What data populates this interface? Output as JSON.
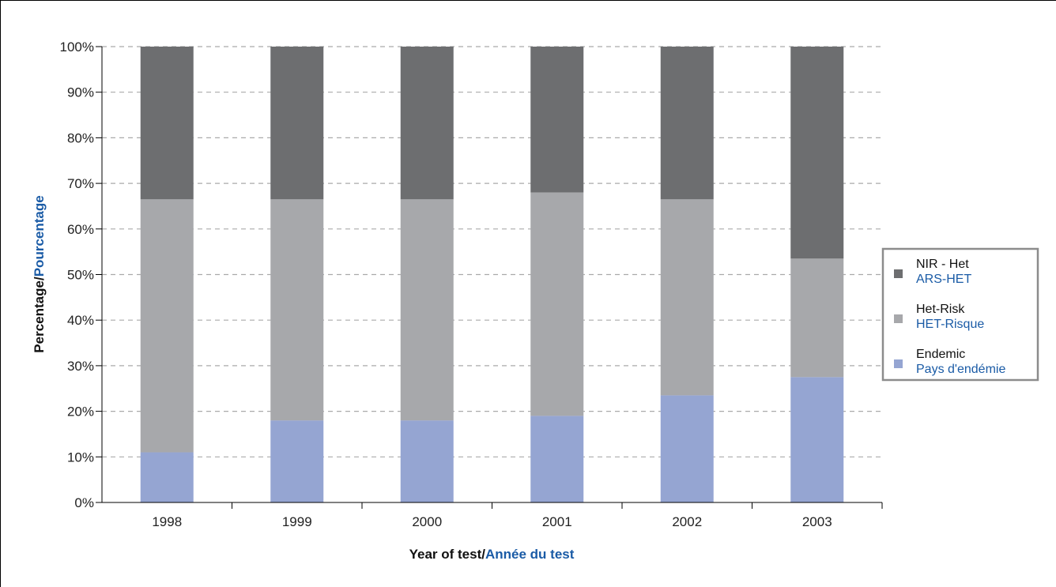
{
  "chart_data": {
    "type": "bar",
    "stacked": true,
    "categories": [
      "1998",
      "1999",
      "2000",
      "2001",
      "2002",
      "2003"
    ],
    "series": [
      {
        "name": "Endemic",
        "name_fr": "Pays d'endémie",
        "color": "#95a5d2",
        "values": [
          11,
          18,
          18,
          19,
          23.5,
          27.5
        ]
      },
      {
        "name": "Het-Risk",
        "name_fr": "HET-Risque",
        "color": "#a7a8ab",
        "values": [
          55.5,
          48.5,
          48.5,
          49,
          43,
          26
        ]
      },
      {
        "name": "NIR - Het",
        "name_fr": "ARS-HET",
        "color": "#6d6e70",
        "values": [
          33.5,
          33.5,
          33.5,
          32,
          33.5,
          46.5
        ]
      }
    ],
    "xlabel": {
      "en": "Year of test",
      "sep": "/",
      "fr": "Année du test"
    },
    "ylabel": {
      "en": "Percentage",
      "sep": "/",
      "fr": "Pourcentage"
    },
    "ylim": [
      0,
      100
    ],
    "yticks": [
      "0%",
      "10%",
      "20%",
      "30%",
      "40%",
      "50%",
      "60%",
      "70%",
      "80%",
      "90%",
      "100%"
    ],
    "grid": "horizontal-dashed",
    "legend_position": "right",
    "colors": {
      "english_text": "#111111",
      "french_text": "#1a5ba6",
      "grid": "#aaaaaa"
    }
  }
}
